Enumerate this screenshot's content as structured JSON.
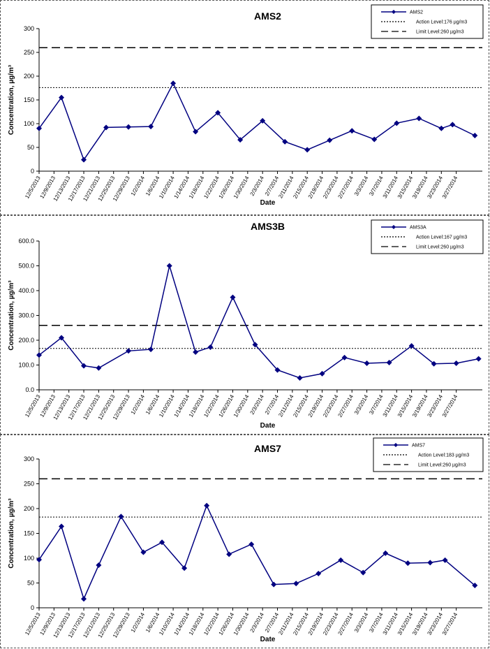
{
  "chart_data": [
    {
      "type": "line",
      "title": "AMS2",
      "xlabel": "Date",
      "ylabel": "Concentration, µg/m³",
      "ylim": [
        0,
        300
      ],
      "yticks": [
        0,
        50,
        100,
        150,
        200,
        250,
        300
      ],
      "ytick_labels": [
        "0",
        "50",
        "100",
        "150",
        "200",
        "250",
        "300"
      ],
      "grid": false,
      "legend_position": "top-right",
      "x": [
        "12/5/2013",
        "12/9/2013",
        "12/13/2013",
        "12/17/2013",
        "12/21/2013",
        "12/25/2013",
        "12/29/2013",
        "1/2/2014",
        "1/6/2014",
        "1/10/2014",
        "1/14/2014",
        "1/18/2014",
        "1/22/2014",
        "1/26/2014",
        "1/30/2014",
        "2/3/2014",
        "2/7/2014",
        "2/11/2014",
        "2/15/2014",
        "2/19/2014",
        "2/23/2014",
        "2/27/2014",
        "3/3/2014",
        "3/7/2014",
        "3/11/2014",
        "3/15/2014",
        "3/19/2014",
        "3/23/2014",
        "3/27/2014"
      ],
      "series": [
        {
          "name": "AMS2",
          "color": "#000080",
          "style": "line-diamond",
          "points": [
            [
              "12/5/2013",
              90
            ],
            [
              "12/11/2013",
              155
            ],
            [
              "12/17/2013",
              24
            ],
            [
              "12/23/2013",
              92
            ],
            [
              "12/29/2013",
              93
            ],
            [
              "1/4/2014",
              94
            ],
            [
              "1/10/2014",
              185
            ],
            [
              "1/16/2014",
              83
            ],
            [
              "1/22/2014",
              123
            ],
            [
              "1/28/2014",
              66
            ],
            [
              "2/3/2014",
              106
            ],
            [
              "2/9/2014",
              62
            ],
            [
              "2/15/2014",
              45
            ],
            [
              "2/21/2014",
              65
            ],
            [
              "2/27/2014",
              85
            ],
            [
              "3/5/2014",
              67
            ],
            [
              "3/11/2014",
              101
            ],
            [
              "3/17/2014",
              111
            ],
            [
              "3/23/2014",
              90
            ],
            [
              "3/26/2014",
              98
            ],
            [
              "4/1/2014",
              75
            ]
          ]
        },
        {
          "name": "Action Level:176 µg/m3",
          "color": "#000000",
          "style": "dotted",
          "value": 176
        },
        {
          "name": "Limit Level:260 µg/m3",
          "color": "#000000",
          "style": "dashed",
          "value": 260
        }
      ]
    },
    {
      "type": "line",
      "title": "AMS3B",
      "xlabel": "Date",
      "ylabel": "Concentration, µg/m³",
      "ylim": [
        0,
        600
      ],
      "yticks": [
        0,
        100,
        200,
        300,
        400,
        500,
        600
      ],
      "ytick_labels": [
        "0.0",
        "100.0",
        "200.0",
        "300.0",
        "400.0",
        "500.0",
        "600.0"
      ],
      "grid": false,
      "legend_position": "top-right",
      "x": [
        "12/5/2013",
        "12/9/2013",
        "12/13/2013",
        "12/17/2013",
        "12/21/2013",
        "12/25/2013",
        "12/29/2013",
        "1/2/2014",
        "1/6/2014",
        "1/10/2014",
        "1/14/2014",
        "1/18/2014",
        "1/22/2014",
        "1/26/2014",
        "1/30/2014",
        "2/3/2014",
        "2/7/2014",
        "2/11/2014",
        "2/15/2014",
        "2/19/2014",
        "2/23/2014",
        "2/27/2014",
        "3/3/2014",
        "3/7/2014",
        "3/11/2014",
        "3/15/2014",
        "3/19/2014",
        "3/23/2014",
        "3/27/2014"
      ],
      "series": [
        {
          "name": "AMS3A",
          "color": "#000080",
          "style": "line-diamond",
          "points": [
            [
              "12/5/2013",
              140
            ],
            [
              "12/11/2013",
              210
            ],
            [
              "12/17/2013",
              97
            ],
            [
              "12/21/2013",
              88
            ],
            [
              "12/29/2013",
              157
            ],
            [
              "1/4/2014",
              163
            ],
            [
              "1/9/2014",
              500
            ],
            [
              "1/16/2014",
              152
            ],
            [
              "1/20/2014",
              172
            ],
            [
              "1/26/2014",
              373
            ],
            [
              "2/1/2014",
              182
            ],
            [
              "2/7/2014",
              80
            ],
            [
              "2/13/2014",
              48
            ],
            [
              "2/19/2014",
              65
            ],
            [
              "2/25/2014",
              130
            ],
            [
              "3/3/2014",
              107
            ],
            [
              "3/9/2014",
              110
            ],
            [
              "3/15/2014",
              177
            ],
            [
              "3/21/2014",
              105
            ],
            [
              "3/27/2014",
              107
            ],
            [
              "4/2/2014",
              125
            ]
          ]
        },
        {
          "name": "Action Level:167 µg/m3",
          "color": "#000000",
          "style": "dotted",
          "value": 167
        },
        {
          "name": "Limit Level:260 µg/m3",
          "color": "#000000",
          "style": "dashed",
          "value": 260
        }
      ]
    },
    {
      "type": "line",
      "title": "AMS7",
      "xlabel": "Date",
      "ylabel": "Concentration, µg/m³",
      "ylim": [
        0,
        300
      ],
      "yticks": [
        0,
        50,
        100,
        150,
        200,
        250,
        300
      ],
      "ytick_labels": [
        "0",
        "50",
        "100",
        "150",
        "200",
        "250",
        "300"
      ],
      "grid": false,
      "legend_position": "top-right",
      "x": [
        "12/5/2013",
        "12/9/2013",
        "12/13/2013",
        "12/17/2013",
        "12/21/2013",
        "12/25/2013",
        "12/29/2013",
        "1/2/2014",
        "1/6/2014",
        "1/10/2014",
        "1/14/2014",
        "1/18/2014",
        "1/22/2014",
        "1/26/2014",
        "1/30/2014",
        "2/3/2014",
        "2/7/2014",
        "2/11/2014",
        "2/15/2014",
        "2/19/2014",
        "2/23/2014",
        "2/27/2014",
        "3/3/2014",
        "3/7/2014",
        "3/11/2014",
        "3/15/2014",
        "3/19/2014",
        "3/23/2014",
        "3/27/2014"
      ],
      "series": [
        {
          "name": "AMS7",
          "color": "#000080",
          "style": "line-diamond",
          "points": [
            [
              "12/5/2013",
              97
            ],
            [
              "12/11/2013",
              164
            ],
            [
              "12/17/2013",
              18
            ],
            [
              "12/21/2013",
              86
            ],
            [
              "12/27/2013",
              184
            ],
            [
              "1/2/2014",
              112
            ],
            [
              "1/7/2014",
              132
            ],
            [
              "1/13/2014",
              80
            ],
            [
              "1/19/2014",
              206
            ],
            [
              "1/25/2014",
              108
            ],
            [
              "1/31/2014",
              128
            ],
            [
              "2/6/2014",
              47
            ],
            [
              "2/12/2014",
              49
            ],
            [
              "2/18/2014",
              69
            ],
            [
              "2/24/2014",
              96
            ],
            [
              "3/2/2014",
              71
            ],
            [
              "3/8/2014",
              110
            ],
            [
              "3/14/2014",
              90
            ],
            [
              "3/20/2014",
              91
            ],
            [
              "3/24/2014",
              96
            ],
            [
              "4/1/2014",
              45
            ]
          ]
        },
        {
          "name": "Action Level:183 µg/m3",
          "color": "#000000",
          "style": "dotted",
          "value": 183
        },
        {
          "name": "Limit Level:260 µg/m3",
          "color": "#000000",
          "style": "dashed",
          "value": 260
        }
      ]
    }
  ]
}
